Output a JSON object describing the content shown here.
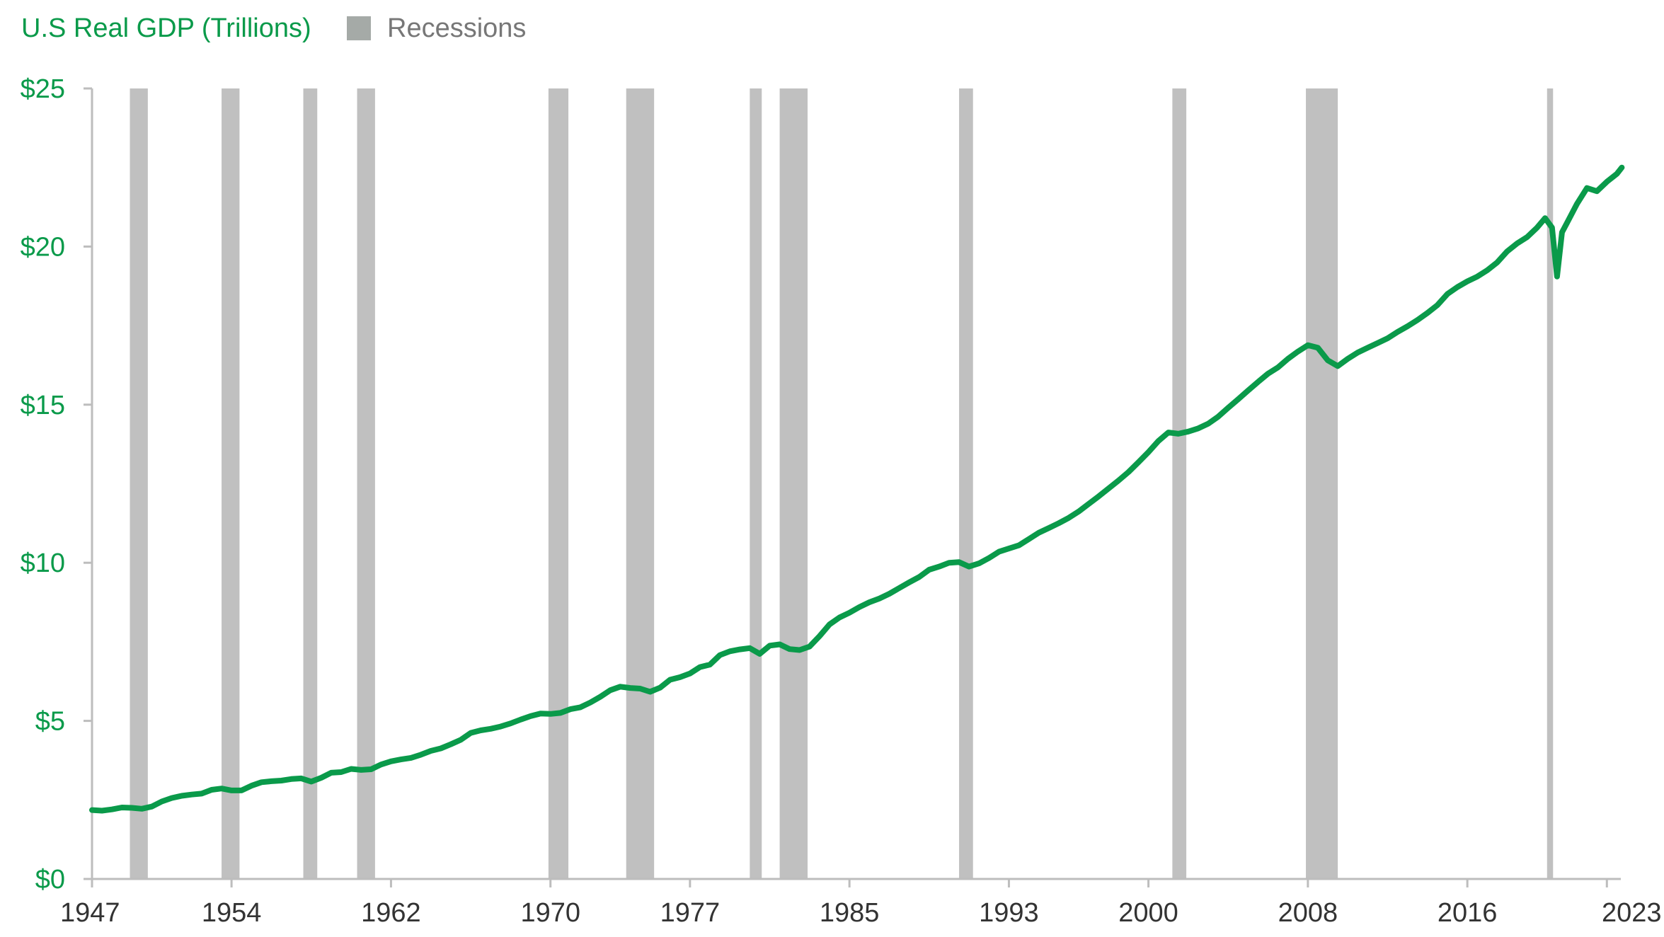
{
  "chart_data": {
    "type": "line",
    "title": "U.S Real GDP (Trillions)",
    "legend": {
      "placement": "top-left",
      "entries": [
        {
          "label": "U.S Real GDP (Trillions)",
          "color": "#0a9a4a"
        },
        {
          "label": "Recessions",
          "color": "#a5aaa7"
        }
      ]
    },
    "colors": {
      "line": "#0a9a4a",
      "recession_band": "#c0c0c0",
      "legend_swatch": "#a5aaa7",
      "axis": "#bdbdbd"
    },
    "xlim": [
      1947,
      2023.7
    ],
    "ylim": [
      0,
      25
    ],
    "y_ticks": [
      {
        "value": 0,
        "label": "$0"
      },
      {
        "value": 5,
        "label": "$5"
      },
      {
        "value": 10,
        "label": "$10"
      },
      {
        "value": 15,
        "label": "$15"
      },
      {
        "value": 20,
        "label": "$20"
      },
      {
        "value": 25,
        "label": "$25"
      }
    ],
    "x_ticks": [
      {
        "value": 1947,
        "label": "1947"
      },
      {
        "value": 1954,
        "label": "1954"
      },
      {
        "value": 1962,
        "label": "1962"
      },
      {
        "value": 1970,
        "label": "1970"
      },
      {
        "value": 1977,
        "label": "1977"
      },
      {
        "value": 1985,
        "label": "1985"
      },
      {
        "value": 1993,
        "label": "1993"
      },
      {
        "value": 2000,
        "label": "2000"
      },
      {
        "value": 2008,
        "label": "2008"
      },
      {
        "value": 2016,
        "label": "2016"
      },
      {
        "value": 2023,
        "label": "2023"
      }
    ],
    "grid": false,
    "recessions": [
      [
        1948.9,
        1949.8
      ],
      [
        1953.5,
        1954.4
      ],
      [
        1957.6,
        1958.3
      ],
      [
        1960.3,
        1961.2
      ],
      [
        1969.9,
        1970.9
      ],
      [
        1973.8,
        1975.2
      ],
      [
        1980.0,
        1980.6
      ],
      [
        1981.5,
        1982.9
      ],
      [
        1990.5,
        1991.2
      ],
      [
        2001.2,
        2001.9
      ],
      [
        2007.9,
        2009.5
      ],
      [
        2020.0,
        2020.3
      ]
    ],
    "series": [
      {
        "values": [
          [
            1947.0,
            2.18
          ],
          [
            1947.5,
            2.16
          ],
          [
            1948.0,
            2.2
          ],
          [
            1948.5,
            2.26
          ],
          [
            1949.0,
            2.25
          ],
          [
            1949.5,
            2.22
          ],
          [
            1950.0,
            2.29
          ],
          [
            1950.5,
            2.45
          ],
          [
            1951.0,
            2.56
          ],
          [
            1951.5,
            2.63
          ],
          [
            1952.0,
            2.67
          ],
          [
            1952.5,
            2.7
          ],
          [
            1953.0,
            2.82
          ],
          [
            1953.5,
            2.86
          ],
          [
            1954.0,
            2.8
          ],
          [
            1954.5,
            2.8
          ],
          [
            1955.0,
            2.95
          ],
          [
            1955.5,
            3.06
          ],
          [
            1956.0,
            3.09
          ],
          [
            1956.5,
            3.11
          ],
          [
            1957.0,
            3.16
          ],
          [
            1957.5,
            3.18
          ],
          [
            1958.0,
            3.08
          ],
          [
            1958.5,
            3.2
          ],
          [
            1959.0,
            3.36
          ],
          [
            1959.5,
            3.38
          ],
          [
            1960.0,
            3.48
          ],
          [
            1960.5,
            3.45
          ],
          [
            1961.0,
            3.47
          ],
          [
            1961.5,
            3.62
          ],
          [
            1962.0,
            3.72
          ],
          [
            1962.5,
            3.78
          ],
          [
            1963.0,
            3.83
          ],
          [
            1963.5,
            3.93
          ],
          [
            1964.0,
            4.05
          ],
          [
            1964.5,
            4.13
          ],
          [
            1965.0,
            4.26
          ],
          [
            1965.5,
            4.4
          ],
          [
            1966.0,
            4.62
          ],
          [
            1966.5,
            4.7
          ],
          [
            1967.0,
            4.75
          ],
          [
            1967.5,
            4.82
          ],
          [
            1968.0,
            4.92
          ],
          [
            1968.5,
            5.04
          ],
          [
            1969.0,
            5.15
          ],
          [
            1969.5,
            5.23
          ],
          [
            1970.0,
            5.22
          ],
          [
            1970.5,
            5.25
          ],
          [
            1971.0,
            5.37
          ],
          [
            1971.5,
            5.43
          ],
          [
            1972.0,
            5.58
          ],
          [
            1972.5,
            5.76
          ],
          [
            1973.0,
            5.97
          ],
          [
            1973.5,
            6.08
          ],
          [
            1974.0,
            6.04
          ],
          [
            1974.5,
            6.02
          ],
          [
            1975.0,
            5.92
          ],
          [
            1975.5,
            6.05
          ],
          [
            1976.0,
            6.3
          ],
          [
            1976.5,
            6.38
          ],
          [
            1977.0,
            6.5
          ],
          [
            1977.5,
            6.7
          ],
          [
            1978.0,
            6.78
          ],
          [
            1978.5,
            7.08
          ],
          [
            1979.0,
            7.2
          ],
          [
            1979.5,
            7.26
          ],
          [
            1980.0,
            7.3
          ],
          [
            1980.5,
            7.12
          ],
          [
            1981.0,
            7.38
          ],
          [
            1981.5,
            7.42
          ],
          [
            1982.0,
            7.27
          ],
          [
            1982.5,
            7.24
          ],
          [
            1983.0,
            7.35
          ],
          [
            1983.5,
            7.68
          ],
          [
            1984.0,
            8.05
          ],
          [
            1984.5,
            8.27
          ],
          [
            1985.0,
            8.42
          ],
          [
            1985.5,
            8.6
          ],
          [
            1986.0,
            8.75
          ],
          [
            1986.5,
            8.87
          ],
          [
            1987.0,
            9.02
          ],
          [
            1987.5,
            9.2
          ],
          [
            1988.0,
            9.38
          ],
          [
            1988.5,
            9.55
          ],
          [
            1989.0,
            9.78
          ],
          [
            1989.5,
            9.88
          ],
          [
            1990.0,
            10.0
          ],
          [
            1990.5,
            10.02
          ],
          [
            1991.0,
            9.88
          ],
          [
            1991.5,
            9.98
          ],
          [
            1992.0,
            10.15
          ],
          [
            1992.5,
            10.35
          ],
          [
            1993.0,
            10.45
          ],
          [
            1993.5,
            10.55
          ],
          [
            1994.0,
            10.75
          ],
          [
            1994.5,
            10.95
          ],
          [
            1995.0,
            11.1
          ],
          [
            1995.5,
            11.25
          ],
          [
            1996.0,
            11.42
          ],
          [
            1996.5,
            11.62
          ],
          [
            1997.0,
            11.86
          ],
          [
            1997.5,
            12.1
          ],
          [
            1998.0,
            12.35
          ],
          [
            1998.5,
            12.6
          ],
          [
            1999.0,
            12.87
          ],
          [
            1999.5,
            13.18
          ],
          [
            2000.0,
            13.5
          ],
          [
            2000.5,
            13.85
          ],
          [
            2001.0,
            14.12
          ],
          [
            2001.5,
            14.08
          ],
          [
            2002.0,
            14.15
          ],
          [
            2002.5,
            14.25
          ],
          [
            2003.0,
            14.4
          ],
          [
            2003.5,
            14.62
          ],
          [
            2004.0,
            14.9
          ],
          [
            2004.5,
            15.17
          ],
          [
            2005.0,
            15.45
          ],
          [
            2005.5,
            15.72
          ],
          [
            2006.0,
            15.98
          ],
          [
            2006.5,
            16.18
          ],
          [
            2007.0,
            16.45
          ],
          [
            2007.5,
            16.68
          ],
          [
            2008.0,
            16.88
          ],
          [
            2008.5,
            16.8
          ],
          [
            2009.0,
            16.4
          ],
          [
            2009.5,
            16.22
          ],
          [
            2010.0,
            16.45
          ],
          [
            2010.5,
            16.65
          ],
          [
            2011.0,
            16.8
          ],
          [
            2011.5,
            16.95
          ],
          [
            2012.0,
            17.1
          ],
          [
            2012.5,
            17.3
          ],
          [
            2013.0,
            17.48
          ],
          [
            2013.5,
            17.68
          ],
          [
            2014.0,
            17.9
          ],
          [
            2014.5,
            18.15
          ],
          [
            2015.0,
            18.5
          ],
          [
            2015.5,
            18.72
          ],
          [
            2016.0,
            18.9
          ],
          [
            2016.5,
            19.05
          ],
          [
            2017.0,
            19.25
          ],
          [
            2017.5,
            19.5
          ],
          [
            2018.0,
            19.85
          ],
          [
            2018.5,
            20.1
          ],
          [
            2019.0,
            20.3
          ],
          [
            2019.5,
            20.6
          ],
          [
            2019.9,
            20.9
          ],
          [
            2020.25,
            20.6
          ],
          [
            2020.5,
            19.05
          ],
          [
            2020.75,
            20.45
          ],
          [
            2021.0,
            20.75
          ],
          [
            2021.5,
            21.35
          ],
          [
            2022.0,
            21.85
          ],
          [
            2022.5,
            21.75
          ],
          [
            2023.0,
            22.05
          ],
          [
            2023.5,
            22.3
          ],
          [
            2023.75,
            22.5
          ]
        ]
      }
    ]
  }
}
